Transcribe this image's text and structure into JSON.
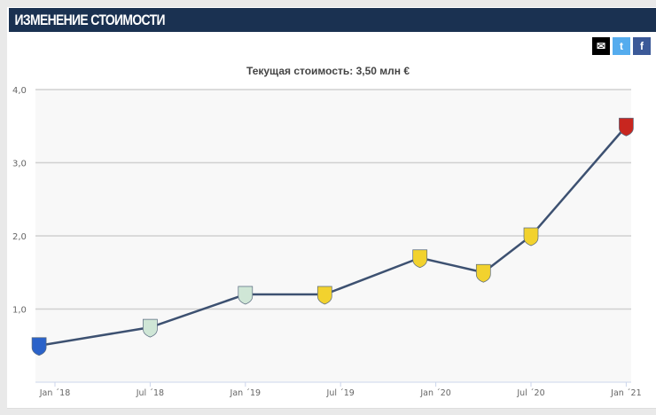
{
  "header": {
    "title": "ИЗМЕНЕНИЕ СТОИМОСТИ"
  },
  "share": [
    {
      "icon": "mail-icon",
      "glyph": "✉",
      "color": "#000000"
    },
    {
      "icon": "twitter-icon",
      "glyph": "t",
      "color": "#55acee"
    },
    {
      "icon": "facebook-icon",
      "glyph": "f",
      "color": "#3b5998"
    }
  ],
  "subtitle": "Текущая стоимость: 3,50 млн €",
  "chart_data": {
    "type": "line",
    "title": "Текущая стоимость: 3,50 млн €",
    "xlabel": "",
    "ylabel": "",
    "ylim": [
      0,
      4
    ],
    "yticks": [
      "1,0",
      "2,0",
      "3,0",
      "4,0"
    ],
    "ytick_values": [
      1,
      2,
      3,
      4
    ],
    "xticks": [
      "Jan ´18",
      "Jul ´18",
      "Jan ´19",
      "Jul ´19",
      "Jan ´20",
      "Jul ´20",
      "Jan ´21"
    ],
    "xtick_dates": [
      "2018-01",
      "2018-07",
      "2019-01",
      "2019-07",
      "2020-01",
      "2020-07",
      "2021-01"
    ],
    "grid": true,
    "line_color": "#3d5171",
    "points": [
      {
        "date": "2017-12",
        "value": 0.5,
        "badge_color": "#2a62c9"
      },
      {
        "date": "2018-07",
        "value": 0.75,
        "badge_color": "#cfe6d6"
      },
      {
        "date": "2019-01",
        "value": 1.2,
        "badge_color": "#cfe6d6"
      },
      {
        "date": "2019-06",
        "value": 1.2,
        "badge_color": "#f2d22e"
      },
      {
        "date": "2019-12",
        "value": 1.7,
        "badge_color": "#f2d22e"
      },
      {
        "date": "2020-04",
        "value": 1.5,
        "badge_color": "#f2d22e"
      },
      {
        "date": "2020-07",
        "value": 2.0,
        "badge_color": "#f2d22e"
      },
      {
        "date": "2021-01",
        "value": 3.5,
        "badge_color": "#c8261f"
      }
    ]
  }
}
